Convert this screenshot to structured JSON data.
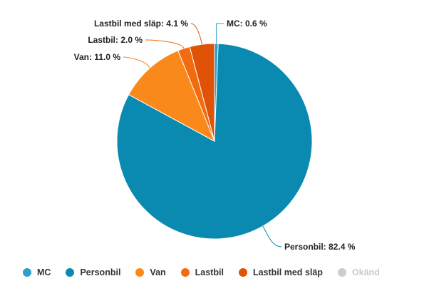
{
  "chart_data": {
    "type": "pie",
    "title": "",
    "slices": [
      {
        "name": "MC",
        "value": 0.6,
        "label": "MC: 0.6 %",
        "color": "#2f9ec8",
        "visible": true
      },
      {
        "name": "Personbil",
        "value": 82.4,
        "label": "Personbil: 82.4 %",
        "color": "#0a8ab0",
        "visible": true
      },
      {
        "name": "Van",
        "value": 11.0,
        "label": "Van: 11.0 %",
        "color": "#f9891a",
        "visible": true
      },
      {
        "name": "Lastbil",
        "value": 2.0,
        "label": "Lastbil: 2.0 %",
        "color": "#f26b0f",
        "visible": true
      },
      {
        "name": "Lastbil med släp",
        "value": 4.1,
        "label": "Lastbil med släp: 4.1 %",
        "color": "#e05306",
        "visible": true
      },
      {
        "name": "Okänd",
        "value": 0.0,
        "label": "",
        "color": "#cccccc",
        "visible": false
      }
    ],
    "legend": {
      "position": "bottom",
      "items": [
        "MC",
        "Personbil",
        "Van",
        "Lastbil",
        "Lastbil med släp",
        "Okänd"
      ]
    }
  }
}
